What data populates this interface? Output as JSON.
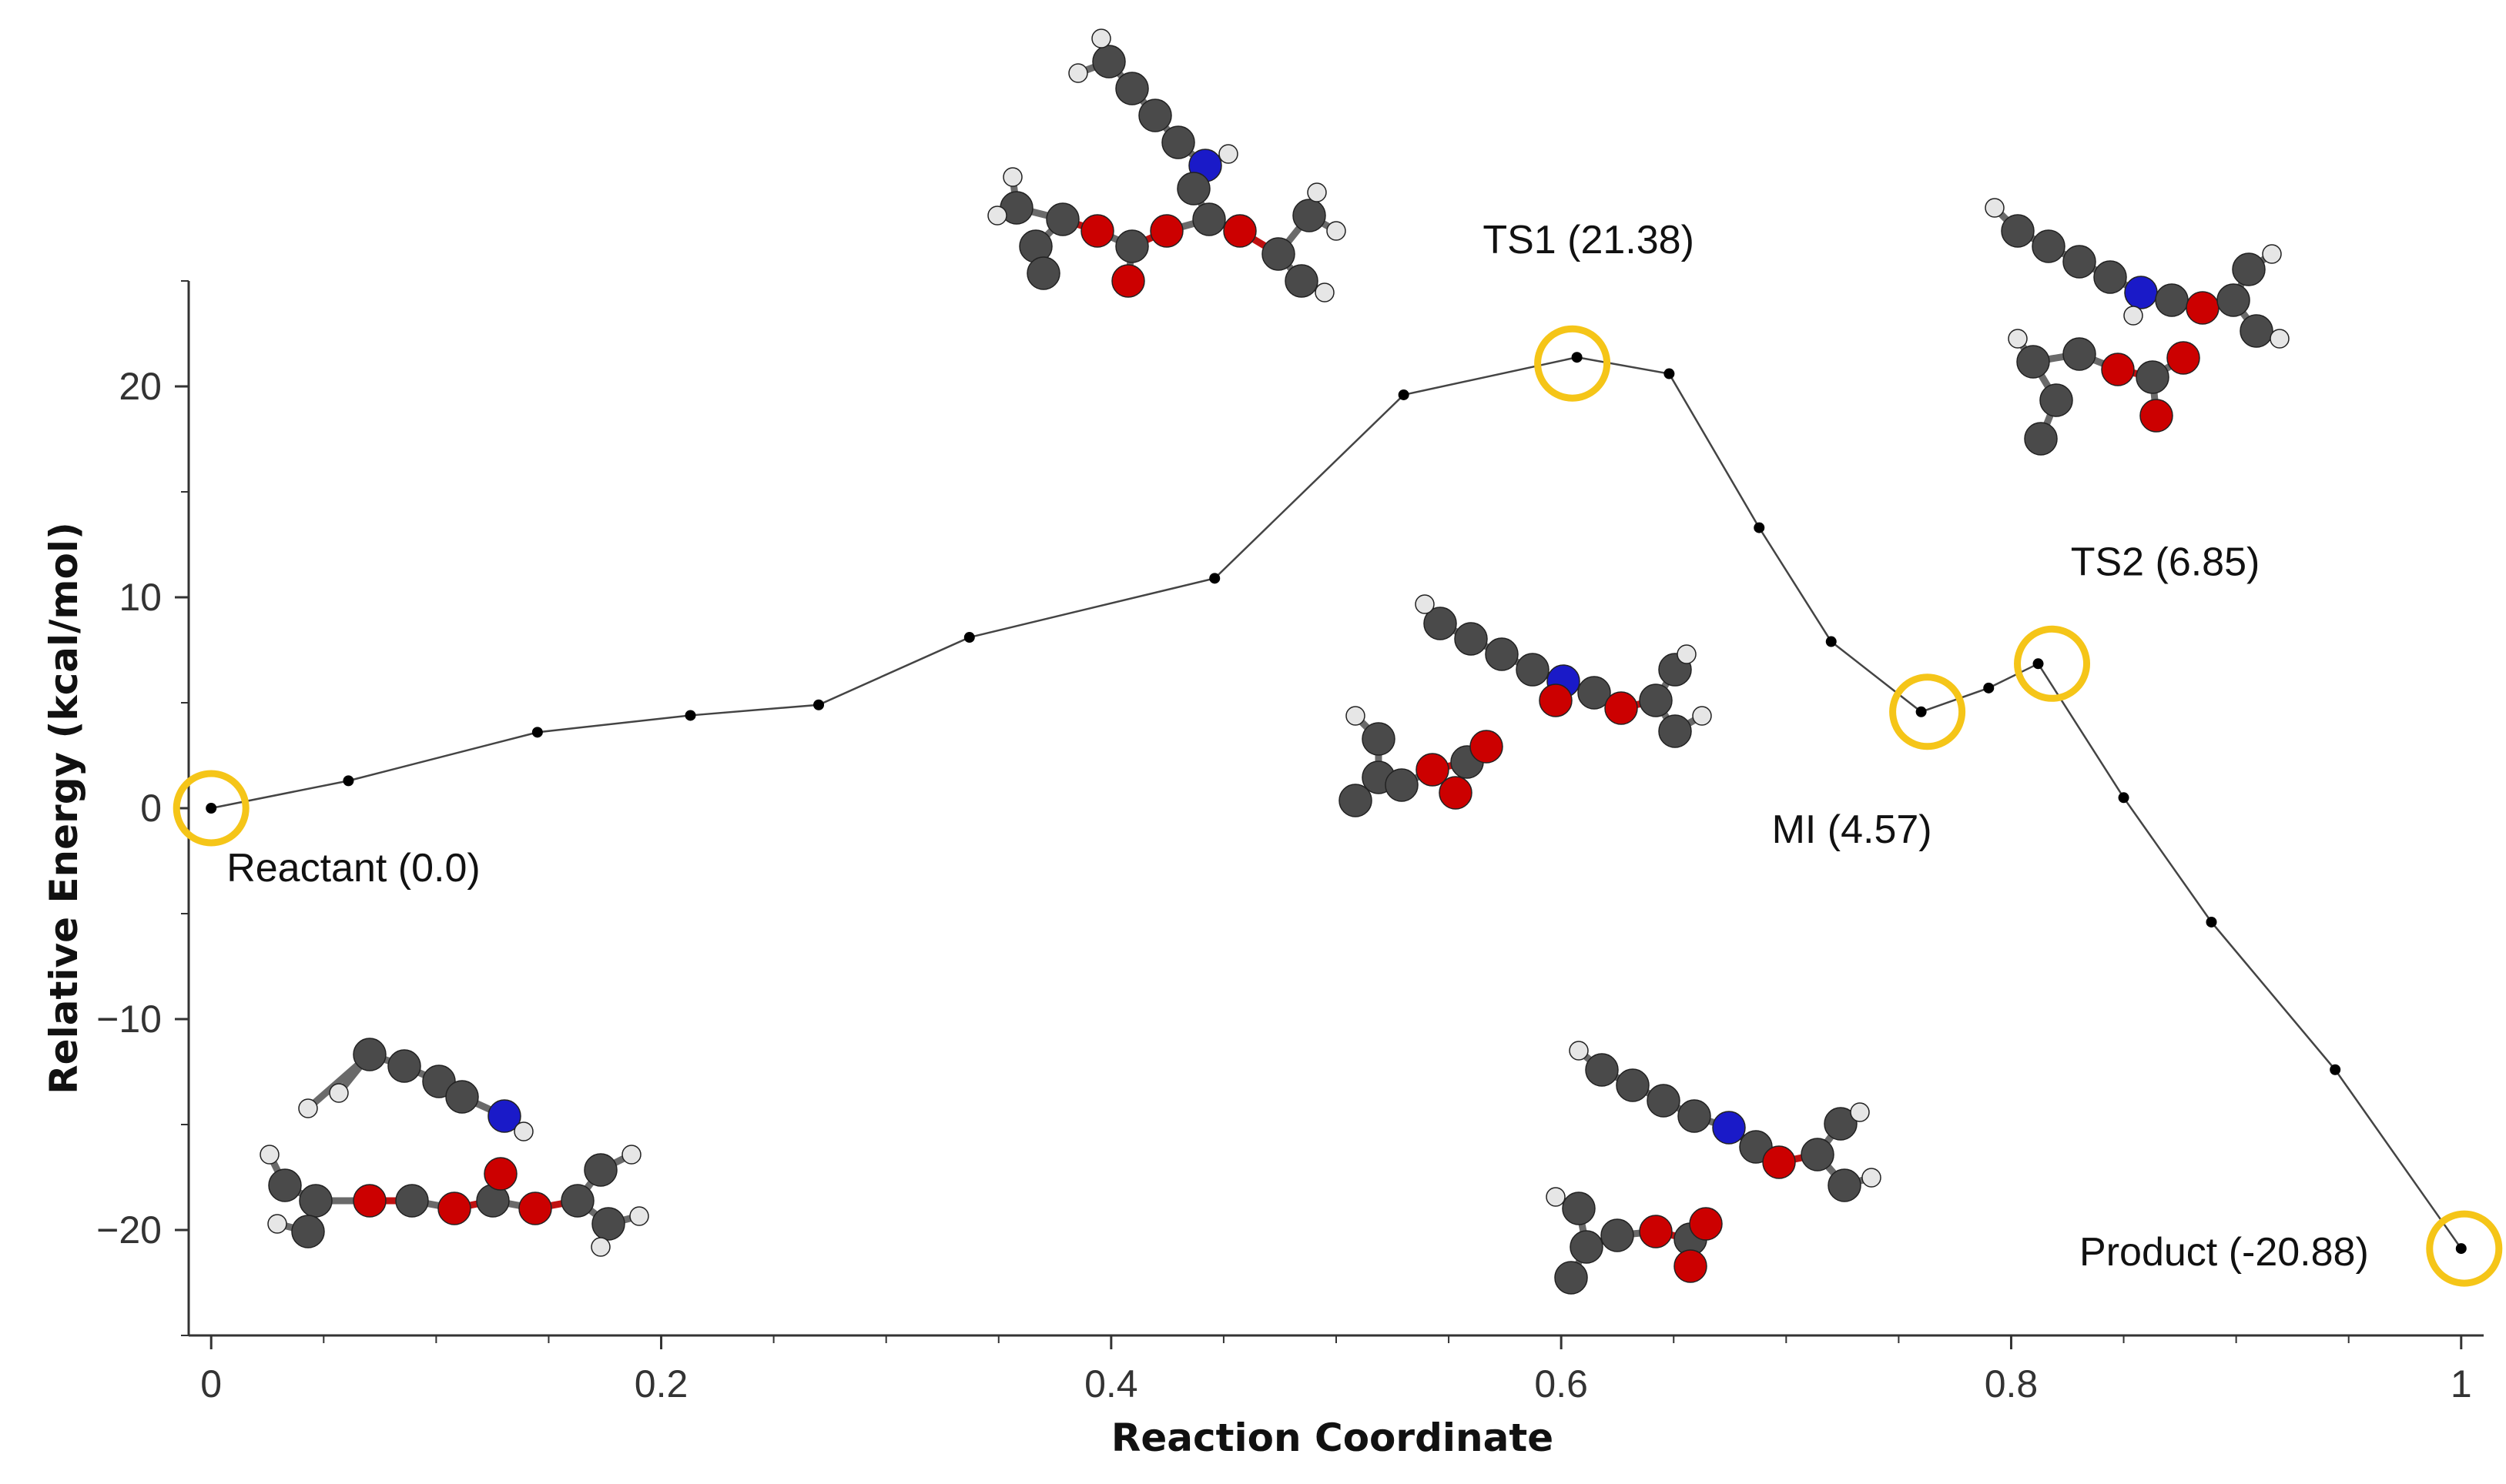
{
  "chart_data": {
    "type": "line",
    "title": "",
    "xlabel": "Reaction Coordinate",
    "ylabel": "Relative Energy (kcal/mol)",
    "xlim": [
      -0.01,
      1.01
    ],
    "ylim": [
      -25,
      25
    ],
    "xticks": [
      0,
      0.2,
      0.4,
      0.6,
      0.8,
      1
    ],
    "xtick_labels": [
      "0",
      "0.2",
      "0.4",
      "0.6",
      "0.8",
      "1"
    ],
    "yticks": [
      20,
      10,
      0,
      -10,
      -20
    ],
    "ytick_labels": [
      "20",
      "10",
      "0",
      "−10",
      "−20"
    ],
    "grid": false,
    "series": [
      {
        "name": "Relative Energy",
        "x": [
          0,
          0.061,
          0.145,
          0.213,
          0.27,
          0.337,
          0.446,
          0.53,
          0.607,
          0.648,
          0.688,
          0.72,
          0.76,
          0.79,
          0.812,
          0.85,
          0.889,
          0.944,
          1.0
        ],
        "y": [
          0.0,
          1.3,
          3.6,
          4.4,
          4.9,
          8.1,
          10.9,
          19.6,
          21.38,
          20.6,
          13.3,
          7.9,
          4.57,
          5.7,
          6.85,
          0.5,
          -5.4,
          -12.4,
          -20.88
        ]
      }
    ],
    "highlights": [
      {
        "label": "Reactant (0.0)",
        "x": 0.0,
        "y": 0.0
      },
      {
        "label": "TS1 (21.38)",
        "x": 0.607,
        "y": 21.38
      },
      {
        "label": "MI (4.57)",
        "x": 0.76,
        "y": 4.57
      },
      {
        "label": "TS2 (6.85)",
        "x": 0.812,
        "y": 6.85
      },
      {
        "label": "Product (-20.88)",
        "x": 1.0,
        "y": -20.88
      }
    ]
  },
  "colors": {
    "line": "#444444",
    "marker": "#000000",
    "highlight_circle": "#f5c518",
    "axis": "#333333"
  }
}
